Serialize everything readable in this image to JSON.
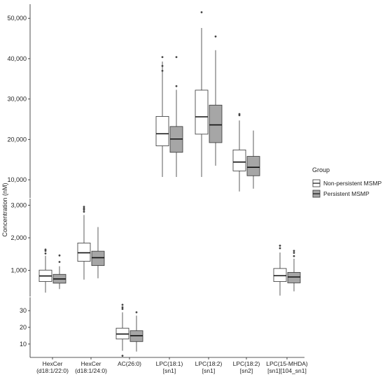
{
  "chart_data": {
    "type": "boxplot",
    "ylabel": "Concentration (nM)",
    "legend": {
      "title": "Group",
      "placement": "right",
      "entries": [
        {
          "name": "Non-persistent MSMP",
          "fill": "#ffffff"
        },
        {
          "name": "Persistent MSMP",
          "fill": "#a6a6a6"
        }
      ]
    },
    "categories": [
      {
        "lines": [
          "HexCer",
          "(d18:1/22:0)"
        ]
      },
      {
        "lines": [
          "HexCer",
          "(d18:1/24:0)"
        ]
      },
      {
        "lines": [
          "AC(26:0)"
        ]
      },
      {
        "lines": [
          "LPC(18:1)",
          "[sn1]"
        ]
      },
      {
        "lines": [
          "LPC(18:2)",
          "[sn1]"
        ]
      },
      {
        "lines": [
          "LPC(18:2)",
          "[sn2]"
        ]
      },
      {
        "lines": [
          "LPC(15-MHDA)",
          "[sn1][104_sn1]"
        ]
      }
    ],
    "panels": [
      {
        "id": "top",
        "ylim": [
          5500,
          53500
        ],
        "ticks": [
          10000,
          20000,
          30000,
          40000,
          50000
        ],
        "tick_labels": [
          "10,000",
          "20,000",
          "30,000",
          "40,000",
          "50,000"
        ],
        "boxes": [
          {
            "category": 3,
            "group": 0,
            "q1": 18400,
            "median": 21400,
            "q3": 25700,
            "whisker_low": 10700,
            "whisker_high": 39300,
            "outliers": [
              37000,
              38200,
              40400
            ]
          },
          {
            "category": 3,
            "group": 1,
            "q1": 16800,
            "median": 20100,
            "q3": 23200,
            "whisker_low": 10700,
            "whisker_high": 32300,
            "outliers": [
              33200,
              40400
            ]
          },
          {
            "category": 4,
            "group": 0,
            "q1": 21300,
            "median": 25600,
            "q3": 32200,
            "whisker_low": 10700,
            "whisker_high": 47600,
            "outliers": [
              51500
            ]
          },
          {
            "category": 4,
            "group": 1,
            "q1": 19200,
            "median": 23600,
            "q3": 28500,
            "whisker_low": 13500,
            "whisker_high": 42100,
            "outliers": [
              45500
            ]
          },
          {
            "category": 5,
            "group": 0,
            "q1": 12200,
            "median": 14400,
            "q3": 17400,
            "whisker_low": 7100,
            "whisker_high": 24700,
            "outliers": [
              26000,
              26300
            ]
          },
          {
            "category": 5,
            "group": 1,
            "q1": 11000,
            "median": 13100,
            "q3": 15800,
            "whisker_low": 7800,
            "whisker_high": 22200,
            "outliers": []
          }
        ]
      },
      {
        "id": "middle",
        "ylim": [
          200,
          3200
        ],
        "ticks": [
          1000,
          2000,
          3000
        ],
        "tick_labels": [
          "1,000",
          "2,000",
          "3,000"
        ],
        "boxes": [
          {
            "category": 0,
            "group": 0,
            "q1": 660,
            "median": 830,
            "q3": 1010,
            "whisker_low": 320,
            "whisker_high": 1450,
            "outliers": [
              1520,
              1600,
              1640
            ]
          },
          {
            "category": 0,
            "group": 1,
            "q1": 610,
            "median": 740,
            "q3": 880,
            "whisker_low": 430,
            "whisker_high": 1130,
            "outliers": [
              1260,
              1460
            ]
          },
          {
            "category": 1,
            "group": 0,
            "q1": 1280,
            "median": 1540,
            "q3": 1840,
            "whisker_low": 720,
            "whisker_high": 2700,
            "outliers": [
              2800,
              2860,
              2900,
              2950
            ]
          },
          {
            "category": 1,
            "group": 1,
            "q1": 1150,
            "median": 1390,
            "q3": 1590,
            "whisker_low": 760,
            "whisker_high": 2330,
            "outliers": []
          },
          {
            "category": 6,
            "group": 0,
            "q1": 660,
            "median": 840,
            "q3": 1060,
            "whisker_low": 230,
            "whisker_high": 1550,
            "outliers": [
              1680,
              1760
            ]
          },
          {
            "category": 6,
            "group": 1,
            "q1": 620,
            "median": 800,
            "q3": 940,
            "whisker_low": 360,
            "whisker_high": 1360,
            "outliers": [
              1440,
              1540,
              1600
            ]
          }
        ]
      },
      {
        "id": "bottom",
        "ylim": [
          2,
          38
        ],
        "ticks": [
          10,
          20,
          30
        ],
        "tick_labels": [
          "10",
          "20",
          "30"
        ],
        "boxes": [
          {
            "category": 2,
            "group": 0,
            "q1": 13,
            "median": 16,
            "q3": 19.5,
            "whisker_low": 6,
            "whisker_high": 29,
            "outliers": [
              3,
              31,
              32,
              33.5
            ]
          },
          {
            "category": 2,
            "group": 1,
            "q1": 11.5,
            "median": 15,
            "q3": 18,
            "whisker_low": 5.5,
            "whisker_high": 27,
            "outliers": [
              29
            ]
          }
        ]
      }
    ]
  }
}
